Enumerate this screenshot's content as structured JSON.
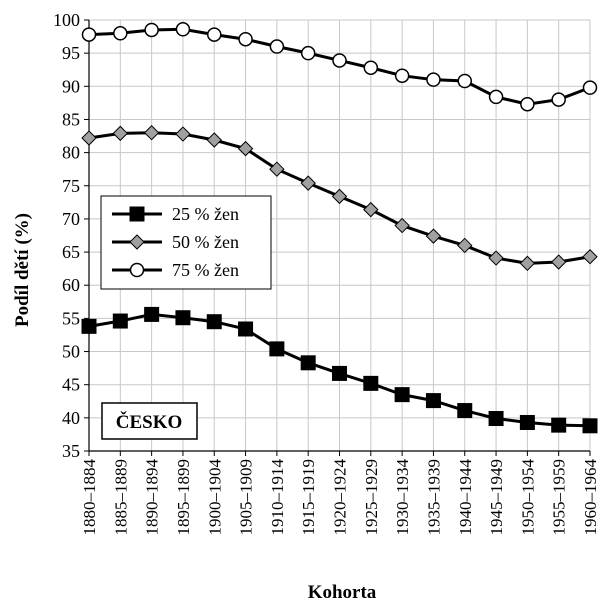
{
  "chart_data": {
    "type": "line",
    "xlabel": "Kohorta",
    "ylabel": "Podíl dětí (%)",
    "ylim": [
      35,
      100
    ],
    "yticks": [
      35,
      40,
      45,
      50,
      55,
      60,
      65,
      70,
      75,
      80,
      85,
      90,
      95,
      100
    ],
    "grid": true,
    "legend_position": "middle-left",
    "categories": [
      "1880–1884",
      "1885–1889",
      "1890–1894",
      "1895–1899",
      "1900–1904",
      "1905–1909",
      "1910–1914",
      "1915–1919",
      "1920–1924",
      "1925–1929",
      "1930–1934",
      "1935–1939",
      "1940–1944",
      "1945–1949",
      "1950–1954",
      "1955–1959",
      "1960–1964"
    ],
    "series": [
      {
        "name": "25 % žen",
        "marker": "square-filled",
        "color": "#000000",
        "values": [
          53.8,
          54.6,
          55.6,
          55.1,
          54.5,
          53.4,
          50.4,
          48.3,
          46.7,
          45.2,
          43.5,
          42.6,
          41.1,
          39.9,
          39.3,
          38.9,
          38.8
        ]
      },
      {
        "name": "50 % žen",
        "marker": "diamond-gray",
        "color": "#a0a0a0",
        "values": [
          82.2,
          82.9,
          83.0,
          82.8,
          81.9,
          80.6,
          77.5,
          75.4,
          73.4,
          71.4,
          69.0,
          67.4,
          66.0,
          64.1,
          63.3,
          63.5,
          64.3
        ]
      },
      {
        "name": "75 % žen",
        "marker": "circle-open",
        "color": "#ffffff",
        "values": [
          97.8,
          98.0,
          98.5,
          98.6,
          97.8,
          97.1,
          96.0,
          95.0,
          93.9,
          92.8,
          91.6,
          91.0,
          90.8,
          88.4,
          87.3,
          88.0,
          89.8
        ]
      }
    ],
    "annotation": "ČESKO"
  }
}
